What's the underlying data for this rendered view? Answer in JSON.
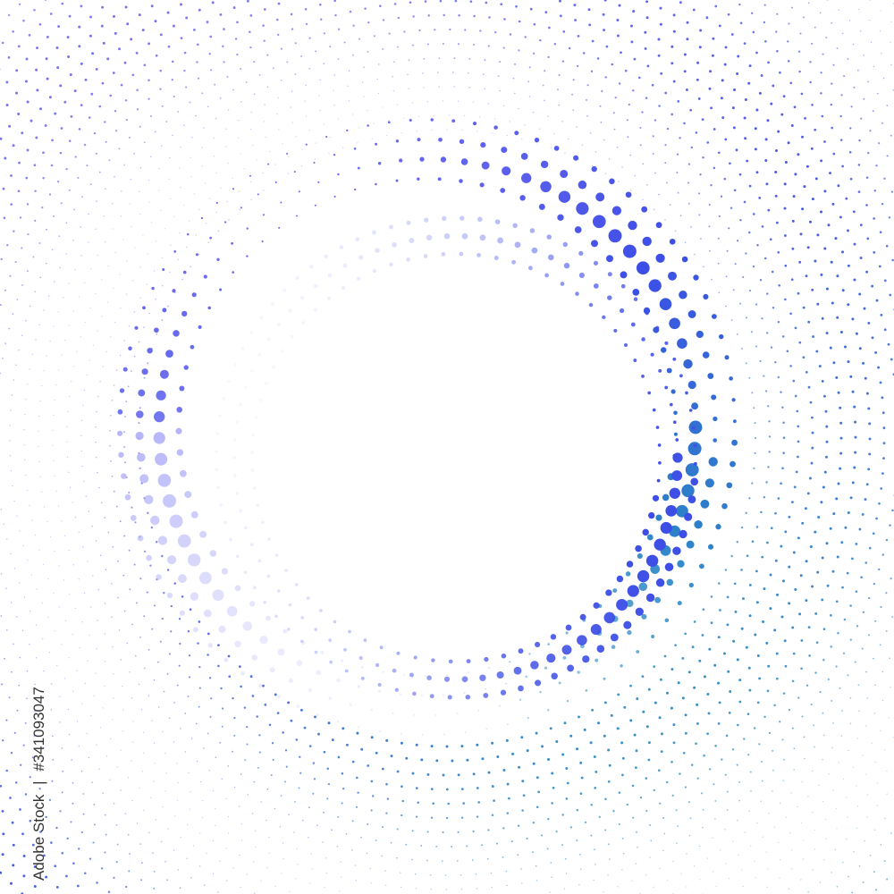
{
  "image": {
    "subject": "halftone dotted circle frame",
    "colors": {
      "teal": "#2a8ac4",
      "blue": "#3d4ee6",
      "violet": "#6f6cf0",
      "lavender": "#c9c8fb"
    }
  },
  "credit": {
    "brand": "Adobe Stock",
    "separator": "|",
    "id": "#341093047"
  }
}
